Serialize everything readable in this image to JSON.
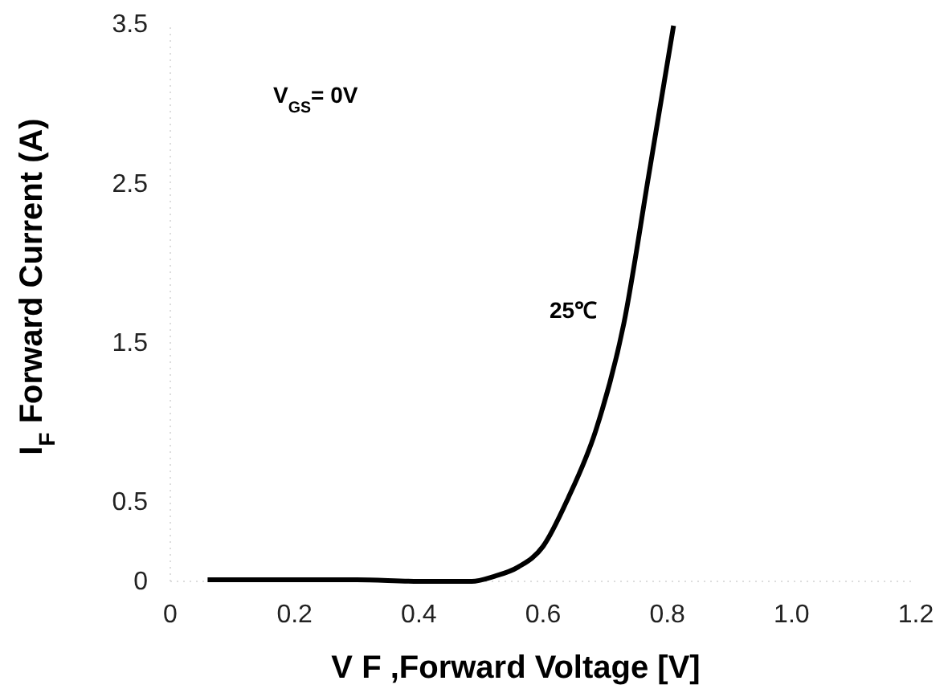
{
  "chart_data": {
    "type": "line",
    "xlabel": "V F ,Forward Voltage [V]",
    "ylabel": "I$_{F}$ Forward Current (A)",
    "annotations": [
      "V$_{GS}$= 0V",
      "25℃"
    ],
    "x": [
      0.06,
      0.2,
      0.3,
      0.4,
      0.485,
      0.52,
      0.56,
      0.6,
      0.64,
      0.685,
      0.73,
      0.77,
      0.81
    ],
    "series": [
      {
        "color": "#000000",
        "values": [
          0.01,
          0.01,
          0.01,
          0,
          0,
          0.03,
          0.09,
          0.22,
          0.52,
          0.95,
          1.62,
          2.55,
          3.49
        ]
      }
    ],
    "xlim": [
      0,
      1.2
    ],
    "ylim": [
      0,
      3.5
    ],
    "xticks": [
      0,
      0.2,
      0.4,
      0.6,
      0.8,
      {
        "value": 1,
        "label": "1.0"
      },
      1.2
    ],
    "yticks": [
      0,
      0.5,
      1.5,
      2.5,
      3.5
    ],
    "grid": false,
    "marker": "none",
    "line_style": "solid"
  }
}
